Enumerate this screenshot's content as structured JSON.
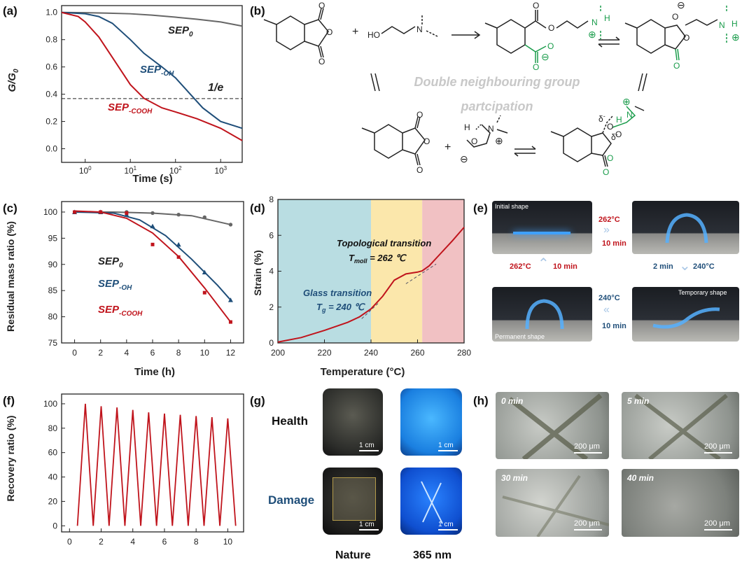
{
  "panel_labels": {
    "a": "(a)",
    "b": "(b)",
    "c": "(c)",
    "d": "(d)",
    "e": "(e)",
    "f": "(f)",
    "g": "(g)",
    "h": "(h)"
  },
  "colors": {
    "gray": "#666666",
    "blue": "#1f4e79",
    "red": "#c0141c",
    "green": "#1a9c4b",
    "teal": "#b9dde2",
    "yellow": "#fbe7ab",
    "pink": "#f1c1c3",
    "faint": "#c8c8c8"
  },
  "chart_data": [
    {
      "id": "a",
      "type": "line",
      "xlabel": "Time (s)",
      "ylabel": "G/G",
      "xscale": "log",
      "xlim": [
        0.3,
        3000
      ],
      "ylim": [
        -0.1,
        1.05
      ],
      "xticks": [
        {
          "v": 1,
          "b": "10",
          "e": "0"
        },
        {
          "v": 10,
          "b": "10",
          "e": "1"
        },
        {
          "v": 100,
          "b": "10",
          "e": "2"
        },
        {
          "v": 1000,
          "b": "10",
          "e": "3"
        }
      ],
      "yticks": [
        0.0,
        0.2,
        0.4,
        0.6,
        0.8,
        1.0
      ],
      "reference_line": {
        "y": 0.368,
        "label": "1/e"
      },
      "series": [
        {
          "name": "SEP",
          "sub": "0",
          "color": "gray",
          "x": [
            0.3,
            1,
            3,
            10,
            30,
            100,
            300,
            1000,
            3000
          ],
          "y": [
            1.0,
            0.998,
            0.995,
            0.99,
            0.98,
            0.965,
            0.95,
            0.93,
            0.9
          ]
        },
        {
          "name": "SEP",
          "sub": "-OH",
          "color": "blue",
          "x": [
            0.3,
            1,
            2,
            4,
            10,
            20,
            50,
            100,
            200,
            400,
            1000,
            3000
          ],
          "y": [
            1.0,
            0.99,
            0.97,
            0.92,
            0.8,
            0.7,
            0.6,
            0.52,
            0.41,
            0.3,
            0.2,
            0.15
          ]
        },
        {
          "name": "SEP",
          "sub": "-COOH",
          "color": "red",
          "x": [
            0.3,
            0.7,
            1,
            2,
            4,
            10,
            20,
            50,
            100,
            300,
            1000,
            3000
          ],
          "y": [
            1.0,
            0.97,
            0.93,
            0.82,
            0.67,
            0.47,
            0.37,
            0.3,
            0.27,
            0.22,
            0.15,
            0.06
          ]
        }
      ]
    },
    {
      "id": "c",
      "type": "line",
      "xlabel": "Time (h)",
      "ylabel": "Residual mass ratio (%)",
      "xlim": [
        -1,
        13
      ],
      "ylim": [
        75,
        102
      ],
      "xticks": [
        0,
        2,
        4,
        6,
        8,
        10,
        12
      ],
      "yticks": [
        75,
        80,
        85,
        90,
        95,
        100
      ],
      "series": [
        {
          "name": "SEP",
          "sub": "0",
          "color": "gray",
          "x": [
            0,
            2,
            4,
            6,
            8,
            10,
            12
          ],
          "y": [
            100,
            100,
            100,
            99.8,
            99.5,
            99,
            97.6
          ]
        },
        {
          "name": "SEP",
          "sub": "-OH",
          "color": "blue",
          "x": [
            0,
            2,
            4,
            6,
            8,
            10,
            12
          ],
          "y": [
            100,
            100,
            99.5,
            97.3,
            93.8,
            88.5,
            83.2
          ]
        },
        {
          "name": "SEP",
          "sub": "-COOH",
          "color": "red",
          "x": [
            0,
            2,
            4,
            6,
            8,
            10,
            12
          ],
          "y": [
            100,
            100,
            99.8,
            93.8,
            91.4,
            84.6,
            79
          ]
        }
      ],
      "fit_curves": [
        {
          "color": "gray",
          "x": [
            0,
            3,
            6,
            9,
            12
          ],
          "y": [
            100,
            100,
            99.8,
            99.3,
            97.6
          ]
        },
        {
          "color": "blue",
          "x": [
            0,
            3,
            5,
            7,
            9,
            11,
            12
          ],
          "y": [
            100,
            99.8,
            98.5,
            95.5,
            91,
            86,
            83.2
          ]
        },
        {
          "color": "red",
          "x": [
            0,
            2,
            4,
            6,
            8,
            10,
            12
          ],
          "y": [
            100.2,
            100,
            98.8,
            96,
            91.5,
            85.5,
            79
          ]
        }
      ]
    },
    {
      "id": "d",
      "type": "line",
      "xlabel": "Temperature (°C)",
      "ylabel": "Strain (%)",
      "xlim": [
        200,
        280
      ],
      "ylim": [
        0,
        8
      ],
      "xticks": [
        200,
        220,
        240,
        260,
        280
      ],
      "yticks": [
        0,
        2,
        4,
        6,
        8
      ],
      "regions": [
        {
          "from": 200,
          "to": 240,
          "color": "teal"
        },
        {
          "from": 240,
          "to": 262,
          "color": "yellow"
        },
        {
          "from": 262,
          "to": 280,
          "color": "pink"
        }
      ],
      "series": [
        {
          "color": "red",
          "x": [
            200,
            210,
            220,
            230,
            235,
            240,
            245,
            250,
            255,
            260,
            262,
            265,
            270,
            275,
            280
          ],
          "y": [
            0.05,
            0.3,
            0.7,
            1.15,
            1.45,
            1.9,
            2.6,
            3.5,
            3.85,
            3.95,
            4.02,
            4.3,
            5.0,
            5.7,
            6.45
          ]
        }
      ],
      "tangents": [
        {
          "x": [
            236,
            243
          ],
          "y": [
            1.35,
            2.2
          ]
        },
        {
          "x": [
            255,
            268
          ],
          "y": [
            3.3,
            4.4
          ]
        }
      ],
      "annotations": {
        "topo": "Topological transition",
        "tmoll_t": "T",
        "tmoll_s": "moll",
        "tmoll_v": " = 262 ℃",
        "glass": "Glass transition",
        "tg_t": "T",
        "tg_s": "g",
        "tg_v": " = 240 ℃"
      }
    },
    {
      "id": "f",
      "type": "line",
      "xlabel": "",
      "ylabel": "Recovery ratio (%)",
      "xlim": [
        -0.5,
        11
      ],
      "ylim": [
        -5,
        108
      ],
      "xticks": [
        0,
        2,
        4,
        6,
        8,
        10
      ],
      "yticks": [
        0,
        20,
        40,
        60,
        80,
        100
      ],
      "series": [
        {
          "color": "red",
          "x": [
            0.5,
            1,
            1.5,
            2,
            2.5,
            3,
            3.5,
            4,
            4.5,
            5,
            5.5,
            6,
            6.5,
            7,
            7.5,
            8,
            8.5,
            9,
            9.5,
            10,
            10.5
          ],
          "y": [
            0,
            100,
            0,
            98,
            0,
            97,
            0,
            95,
            0,
            93,
            0,
            92,
            0,
            91,
            0,
            90,
            0,
            89,
            0,
            88,
            0
          ]
        }
      ]
    }
  ],
  "panel_b": {
    "title_line1": "Double neighbouring group",
    "title_line2": "partcipation",
    "plus": "+",
    "minus": "⊖",
    "plus_circle": "⊕",
    "ho": "HO",
    "n": "N",
    "h": "H",
    "o": "O",
    "delta": "δ",
    "neg": "-"
  },
  "panel_e": {
    "initial": "Initial shape",
    "temporary": "Temporary shape",
    "permanent": "Permanent shape",
    "t1": "262°C",
    "d1": "10 min",
    "t2": "2 min",
    "t2b": "240°C",
    "t3": "240°C",
    "d3": "10 min",
    "t4": "262°C",
    "d4": "10 min"
  },
  "panel_g": {
    "health": "Health",
    "damage": "Damage",
    "nature": "Nature",
    "uv": "365 nm",
    "scale": "1 cm"
  },
  "panel_h": {
    "t0": "0 min",
    "t5": "5 min",
    "t30": "30 min",
    "t40": "40 min",
    "scale": "200 μm"
  }
}
